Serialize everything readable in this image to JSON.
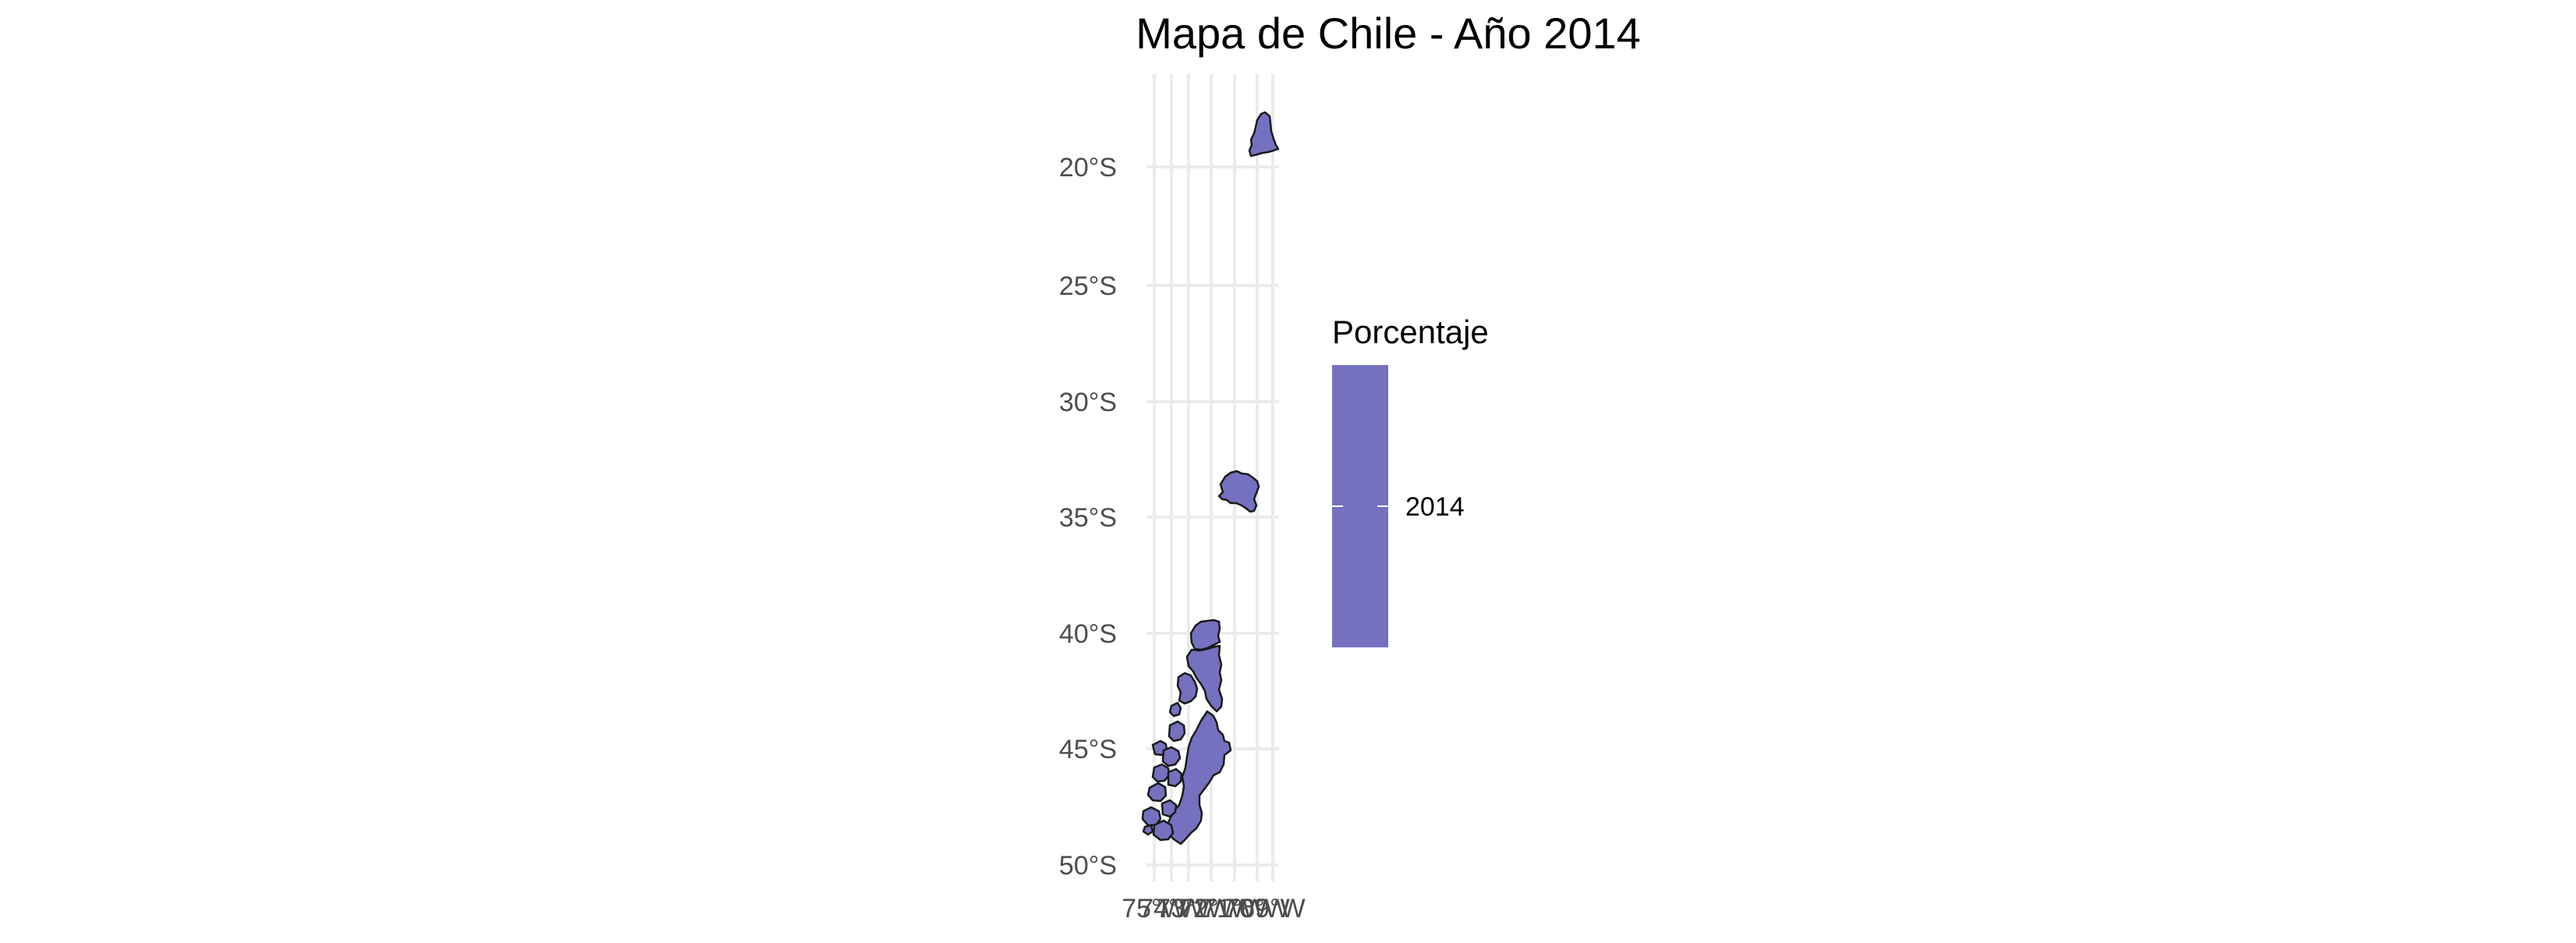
{
  "title": "Mapa de Chile - Año 2014",
  "fill_color": "#7570bf",
  "border_color": "#1a1a1a",
  "grid_color": "#ebebeb",
  "y_axis": {
    "ticks": [
      "20°S",
      "25°S",
      "30°S",
      "35°S",
      "40°S",
      "45°S",
      "50°S"
    ],
    "values": [
      -20,
      -25,
      -30,
      -35,
      -40,
      -45,
      -50
    ]
  },
  "x_axis": {
    "ticks": [
      "75°W",
      "74°W",
      "73°W",
      "72°W",
      "71°W",
      "70°W",
      "69°W"
    ],
    "values": [
      -75,
      -74,
      -73,
      -72,
      -71,
      -70,
      -69
    ]
  },
  "legend": {
    "title": "Porcentaje",
    "label": "2014",
    "placement": "right"
  },
  "regions": [
    {
      "name": "Arica y Parinacota"
    },
    {
      "name": "Valparaíso"
    },
    {
      "name": "Los Ríos"
    },
    {
      "name": "Los Lagos"
    },
    {
      "name": "Aysén"
    }
  ]
}
